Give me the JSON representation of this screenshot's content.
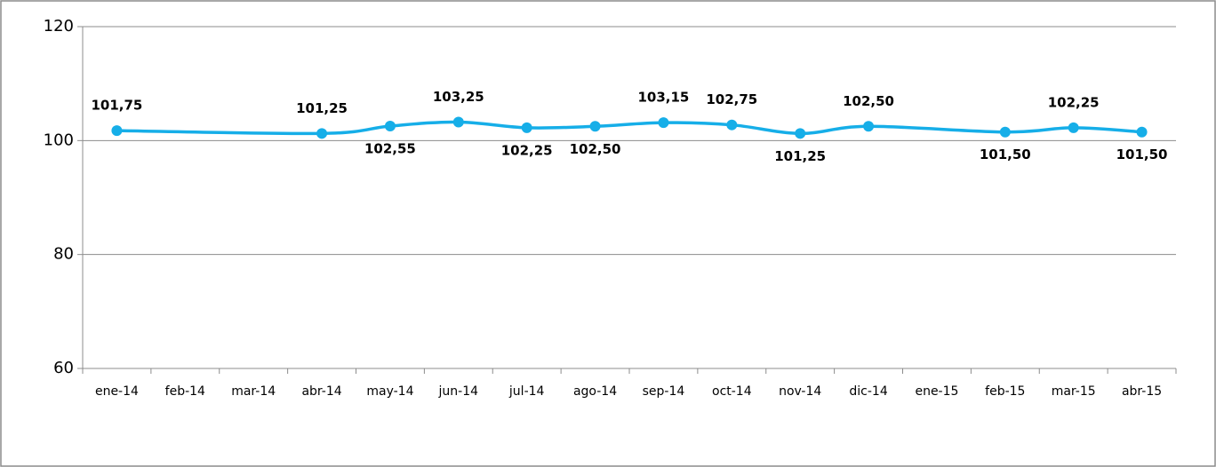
{
  "chart_data": {
    "type": "line",
    "categories": [
      "ene-14",
      "feb-14",
      "mar-14",
      "abr-14",
      "may-14",
      "jun-14",
      "jul-14",
      "ago-14",
      "sep-14",
      "oct-14",
      "nov-14",
      "dic-14",
      "ene-15",
      "feb-15",
      "mar-15",
      "abr-15"
    ],
    "series": [
      {
        "color": "#16aee8",
        "values": [
          101.75,
          null,
          null,
          101.25,
          102.55,
          103.25,
          102.25,
          102.5,
          103.15,
          102.75,
          101.25,
          102.5,
          null,
          101.5,
          102.25,
          101.5
        ],
        "value_labels": [
          "101,75",
          null,
          null,
          "101,25",
          "102,55",
          "103,25",
          "102,25",
          "102,50",
          "103,15",
          "102,75",
          "101,25",
          "102,50",
          null,
          "101,50",
          "102,25",
          "101,50"
        ]
      }
    ],
    "ylim": [
      60,
      120
    ],
    "yticks": [
      60,
      80,
      100,
      120
    ],
    "grid": true,
    "span_gaps": true,
    "smooth": true
  }
}
